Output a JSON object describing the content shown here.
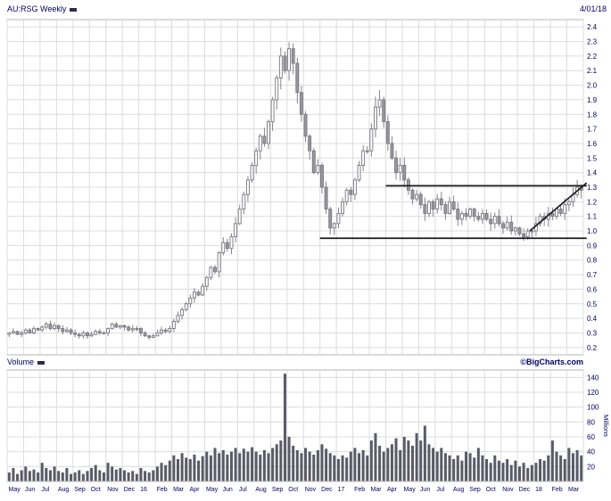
{
  "header": {
    "symbol_label": "AU:RSG Weekly",
    "date": "4/01/18"
  },
  "volume_panel": {
    "label": "Volume",
    "credit": "©BigCharts.com",
    "unit_label": "Millions"
  },
  "chart_data": {
    "type": "candlestick",
    "title": "AU:RSG Weekly",
    "symbol": "AU:RSG",
    "interval": "Weekly",
    "as_of_date": "4/01/18",
    "x_labels": [
      "May",
      "Jun",
      "Jul",
      "Aug",
      "Sep",
      "Oct",
      "Nov",
      "Dec",
      "16",
      "Feb",
      "Mar",
      "Apr",
      "May",
      "Jun",
      "Jul",
      "Aug",
      "Sep",
      "Oct",
      "Nov",
      "Dec",
      "17",
      "Feb",
      "Mar",
      "Apr",
      "May",
      "Jun",
      "Jul",
      "Aug",
      "Sep",
      "Oct",
      "Nov",
      "Dec",
      "18",
      "Feb",
      "Mar"
    ],
    "bars_per_label": 4,
    "price_axis": {
      "min": 0.2,
      "max": 2.4,
      "step": 0.1
    },
    "plot_range": {
      "min": 0.15,
      "max": 2.45
    },
    "closes": [
      0.3,
      0.31,
      0.29,
      0.3,
      0.32,
      0.3,
      0.33,
      0.32,
      0.34,
      0.36,
      0.33,
      0.35,
      0.33,
      0.31,
      0.32,
      0.3,
      0.29,
      0.28,
      0.3,
      0.28,
      0.29,
      0.31,
      0.3,
      0.3,
      0.33,
      0.36,
      0.34,
      0.35,
      0.34,
      0.32,
      0.33,
      0.33,
      0.3,
      0.28,
      0.27,
      0.28,
      0.3,
      0.32,
      0.31,
      0.33,
      0.38,
      0.42,
      0.46,
      0.5,
      0.54,
      0.58,
      0.56,
      0.62,
      0.68,
      0.75,
      0.72,
      0.85,
      0.92,
      0.88,
      0.96,
      1.05,
      1.15,
      1.25,
      1.35,
      1.45,
      1.55,
      1.65,
      1.6,
      1.75,
      1.9,
      2.05,
      2.2,
      2.1,
      2.25,
      2.15,
      1.95,
      1.8,
      1.65,
      1.55,
      1.4,
      1.45,
      1.3,
      1.15,
      1.02,
      1.05,
      1.12,
      1.2,
      1.28,
      1.25,
      1.35,
      1.45,
      1.55,
      1.55,
      1.7,
      1.85,
      1.9,
      1.75,
      1.6,
      1.5,
      1.4,
      1.45,
      1.35,
      1.28,
      1.22,
      1.25,
      1.18,
      1.12,
      1.2,
      1.15,
      1.22,
      1.18,
      1.12,
      1.2,
      1.15,
      1.08,
      1.12,
      1.1,
      1.15,
      1.1,
      1.08,
      1.12,
      1.08,
      1.05,
      1.1,
      1.05,
      1.02,
      1.06,
      1.0,
      1.02,
      0.98,
      0.96,
      1.0,
      1.0,
      1.05,
      1.1,
      1.08,
      1.12,
      1.1,
      1.15,
      1.12,
      1.18,
      1.2,
      1.25,
      1.3,
      1.28
    ],
    "volume": {
      "values": [
        12,
        18,
        10,
        15,
        20,
        14,
        16,
        12,
        25,
        18,
        15,
        20,
        14,
        12,
        18,
        10,
        12,
        15,
        10,
        14,
        18,
        22,
        15,
        12,
        25,
        20,
        16,
        18,
        15,
        12,
        14,
        10,
        18,
        14,
        12,
        15,
        20,
        25,
        22,
        28,
        35,
        30,
        38,
        32,
        30,
        36,
        28,
        34,
        40,
        35,
        45,
        38,
        42,
        36,
        40,
        45,
        38,
        44,
        40,
        46,
        40,
        36,
        42,
        38,
        45,
        50,
        55,
        145,
        60,
        48,
        42,
        38,
        45,
        40,
        36,
        42,
        50,
        44,
        38,
        35,
        30,
        35,
        32,
        40,
        45,
        38,
        42,
        35,
        55,
        65,
        48,
        40,
        45,
        50,
        58,
        42,
        60,
        55,
        48,
        65,
        55,
        75,
        50,
        45,
        40,
        45,
        38,
        35,
        30,
        35,
        28,
        40,
        38,
        32,
        45,
        35,
        30,
        25,
        35,
        28,
        25,
        30,
        22,
        28,
        20,
        25,
        18,
        22,
        25,
        30,
        28,
        35,
        55,
        40,
        35,
        30,
        45,
        38,
        42,
        35
      ],
      "axis": {
        "min": 20,
        "max": 140,
        "step": 20,
        "plot_max": 150
      },
      "unit": "Millions"
    },
    "trendlines": [
      {
        "label": "resistance",
        "from_bar": 92,
        "to_bar": 140.8,
        "from_price": 1.31,
        "to_price": 1.31
      },
      {
        "label": "support",
        "from_bar": 76,
        "to_bar": 140.8,
        "from_price": 0.95,
        "to_price": 0.95
      },
      {
        "label": "ascending-support",
        "from_bar": 127,
        "to_bar": 140.8,
        "from_price": 1.0,
        "to_price": 1.33
      }
    ],
    "colors": {
      "label": "#000066",
      "grid": "#dcdcdc",
      "pane_border": "#b4b4b4",
      "candle_up_fill": "#ffffff",
      "candle_down_fill": "#98989f",
      "candle_outline": "#77777e",
      "volume_bar": "#5a5a68",
      "trendline": "#1b1b1b",
      "swatch": "#2b2b55"
    }
  }
}
